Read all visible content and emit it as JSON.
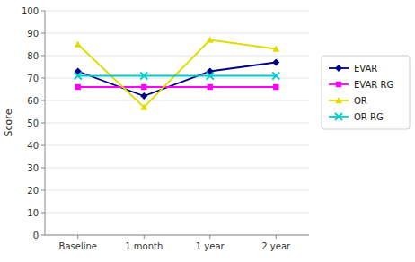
{
  "chart_data": {
    "type": "line",
    "categories": [
      "Baseline",
      "1 month",
      "1 year",
      "2 year"
    ],
    "series": [
      {
        "name": "EVAR",
        "color": "#00008B",
        "marker": "diamond",
        "values": [
          73,
          62,
          73,
          77
        ]
      },
      {
        "name": "EVAR RG",
        "color": "#FF00FF",
        "marker": "square",
        "values": [
          66,
          66,
          66,
          66
        ]
      },
      {
        "name": "OR",
        "color": "#DDDD00",
        "marker": "triangle",
        "values": [
          85,
          57,
          87,
          83
        ]
      },
      {
        "name": "OR-RG",
        "color": "#00CCCC",
        "marker": "x",
        "values": [
          71,
          71,
          71,
          71
        ]
      }
    ],
    "y_label": "Score",
    "ylim": [
      0,
      100
    ],
    "yticks": [
      0,
      10,
      20,
      30,
      40,
      50,
      60,
      70,
      80,
      90,
      100
    ],
    "grid": true,
    "legend": "right"
  }
}
